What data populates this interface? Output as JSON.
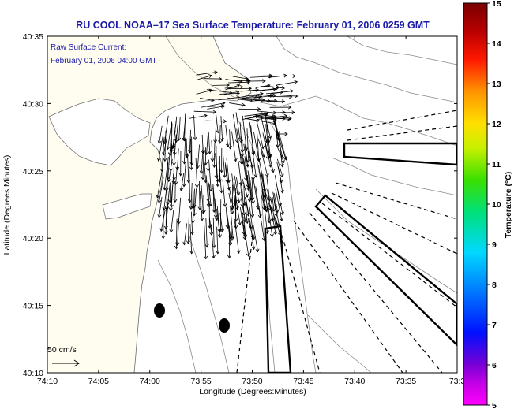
{
  "title": "RU COOL  NOAA–17  Sea Surface Temperature:  February 01, 2006 0259 GMT",
  "notes": {
    "line1": "Raw Surface Current:",
    "line2": "February 01, 2006 04:00 GMT"
  },
  "scale": {
    "label": "50 cm/s"
  },
  "axes": {
    "xlabel": "Longitude (Degrees:Minutes)",
    "ylabel": "Latitude (Degrees:Minutes)",
    "xticks": [
      "74:10",
      "74:05",
      "74:00",
      "73:55",
      "73:50",
      "73:45",
      "73:40",
      "73:35",
      "73:3"
    ],
    "yticks": [
      "40:35",
      "40:30",
      "40:25",
      "40:20",
      "40:15",
      "40:10"
    ]
  },
  "colorbar": {
    "label": "Temperature (°C)",
    "ticks": [
      "15",
      "14",
      "13",
      "12",
      "11",
      "10",
      "9",
      "8",
      "7",
      "6",
      "5"
    ],
    "range": [
      5,
      15
    ],
    "colors": [
      "#ff00ff",
      "#7a00d6",
      "#0010ff",
      "#0077ff",
      "#00d8ff",
      "#00e07a",
      "#3ae000",
      "#c8f000",
      "#ffe000",
      "#ff9400",
      "#ff1800",
      "#b80000",
      "#7a0000"
    ]
  },
  "chart_data": {
    "type": "map",
    "title": "RU COOL  NOAA–17  Sea Surface Temperature:  February 01, 2006 0259 GMT",
    "xlabel": "Longitude (Degrees:Minutes)",
    "ylabel": "Latitude (Degrees:Minutes)",
    "x_range_deg_w": [
      74.1667,
      73.5333
    ],
    "y_range_deg_n": [
      40.1667,
      40.5833
    ],
    "colorbar_range_c": [
      5,
      15
    ],
    "buoys": [
      {
        "lon": 73.9833,
        "lat": 40.2333
      },
      {
        "lon": 73.9083,
        "lat": 40.2167
      }
    ]
  }
}
